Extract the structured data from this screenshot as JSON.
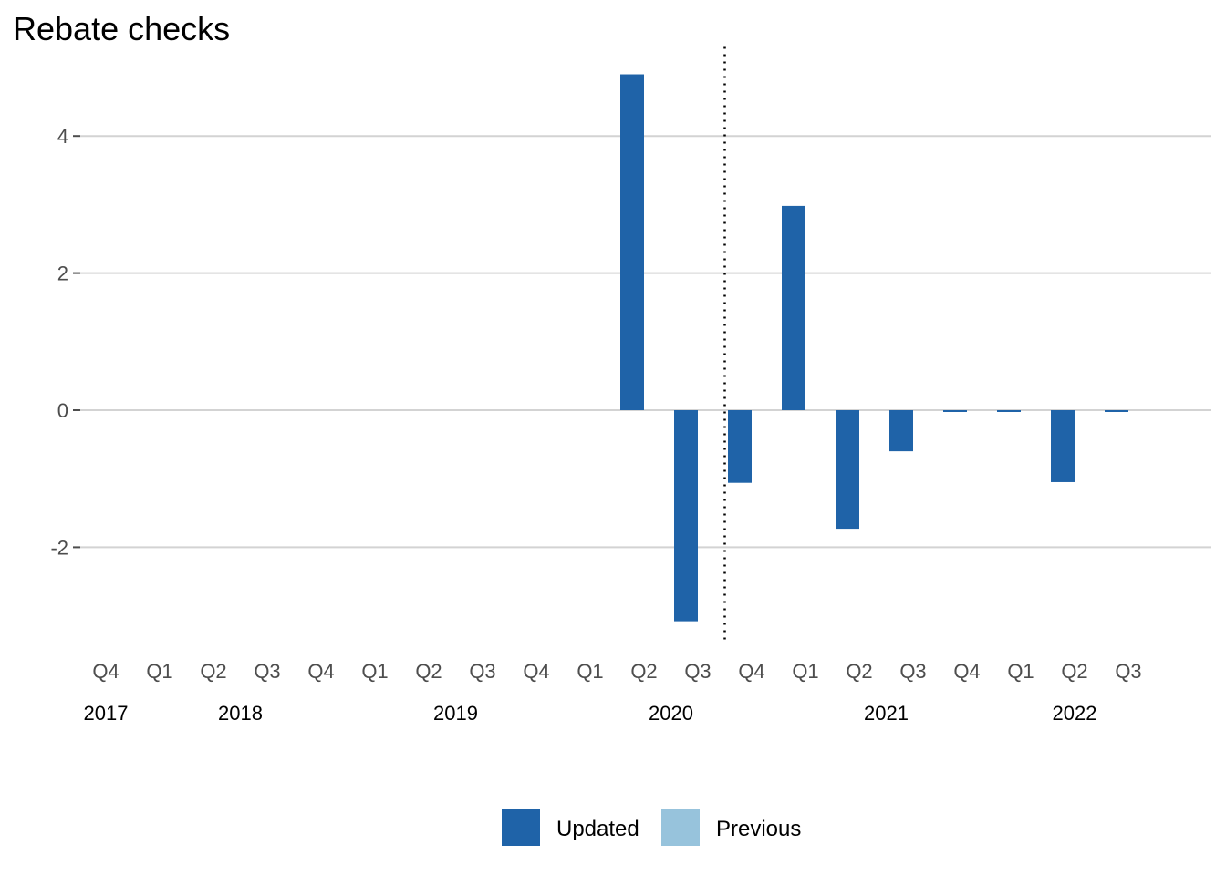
{
  "chart_data": {
    "type": "bar",
    "title": "Rebate checks",
    "xlabel": "",
    "ylabel": "",
    "ylim": [
      -3.35,
      5.3
    ],
    "yticks": [
      -2,
      0,
      2,
      4
    ],
    "grid": true,
    "legend_position": "bottom",
    "categories": [
      "2017 Q4",
      "2018 Q1",
      "2018 Q2",
      "2018 Q3",
      "2018 Q4",
      "2019 Q1",
      "2019 Q2",
      "2019 Q3",
      "2019 Q4",
      "2020 Q1",
      "2020 Q2",
      "2020 Q3",
      "2020 Q4",
      "2021 Q1",
      "2021 Q2",
      "2021 Q3",
      "2021 Q4",
      "2022 Q1",
      "2022 Q2",
      "2022 Q3"
    ],
    "quarter_labels": [
      "Q4",
      "Q1",
      "Q2",
      "Q3",
      "Q4",
      "Q1",
      "Q2",
      "Q3",
      "Q4",
      "Q1",
      "Q2",
      "Q3",
      "Q4",
      "Q1",
      "Q2",
      "Q3",
      "Q4",
      "Q1",
      "Q2",
      "Q3"
    ],
    "year_labels": [
      {
        "label": "2017",
        "center": 0
      },
      {
        "label": "2018",
        "center": 2.5
      },
      {
        "label": "2019",
        "center": 6.5
      },
      {
        "label": "2020",
        "center": 10.5
      },
      {
        "label": "2021",
        "center": 14.5
      },
      {
        "label": "2022",
        "center": 18
      }
    ],
    "vline_after_index": 11.5,
    "series": [
      {
        "name": "Updated",
        "color": "#1f63a8",
        "values": [
          0,
          0,
          0,
          0,
          0,
          0,
          0,
          0,
          0,
          0,
          4.9,
          -3.08,
          -1.06,
          2.98,
          -1.73,
          -0.6,
          -0.02,
          -0.02,
          -1.05,
          -0.02
        ]
      },
      {
        "name": "Previous",
        "color": "#97c3dc",
        "values": [
          0,
          0,
          0,
          0,
          0,
          0,
          0,
          0,
          0,
          0,
          0,
          0,
          0,
          0,
          0,
          0,
          0,
          0,
          0,
          0
        ]
      }
    ]
  }
}
